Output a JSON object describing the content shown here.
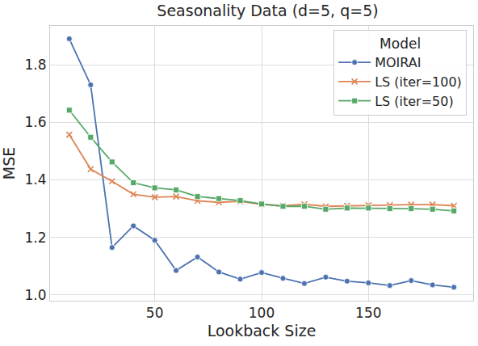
{
  "chart_data": {
    "type": "line",
    "title": "Seasonality Data (d=5, q=5)",
    "x_label": "Lookback Size",
    "y_label": "MSE",
    "legend_title": "Model",
    "legend": "upper right",
    "grid": true,
    "x": [
      10,
      20,
      30,
      40,
      50,
      60,
      70,
      80,
      90,
      100,
      110,
      120,
      130,
      140,
      150,
      160,
      170,
      180,
      190
    ],
    "series": [
      {
        "name": "MOIRAI",
        "color": "#4c72b0",
        "marker": "circle",
        "line_style": "solid",
        "values": [
          1.89,
          1.73,
          1.165,
          1.24,
          1.19,
          1.085,
          1.132,
          1.08,
          1.055,
          1.078,
          1.058,
          1.04,
          1.062,
          1.048,
          1.042,
          1.033,
          1.05,
          1.035,
          1.027
        ]
      },
      {
        "name": "LS (iter=100)",
        "color": "#dd8452",
        "marker": "x",
        "line_style": "solid",
        "values": [
          1.557,
          1.437,
          1.395,
          1.35,
          1.34,
          1.342,
          1.327,
          1.322,
          1.325,
          1.315,
          1.31,
          1.315,
          1.308,
          1.31,
          1.312,
          1.312,
          1.314,
          1.314,
          1.31
        ]
      },
      {
        "name": "LS (iter=50)",
        "color": "#55a868",
        "marker": "square",
        "line_style": "solid",
        "values": [
          1.642,
          1.548,
          1.462,
          1.39,
          1.372,
          1.365,
          1.342,
          1.335,
          1.328,
          1.316,
          1.308,
          1.308,
          1.298,
          1.302,
          1.302,
          1.3,
          1.3,
          1.298,
          1.292
        ]
      }
    ],
    "xlim": [
      1,
      199
    ],
    "xticks": [
      50,
      100,
      150
    ],
    "ylim": [
      0.98,
      1.935
    ],
    "yticks": [
      {
        "value": 1.0,
        "label": "1.0"
      },
      {
        "value": 1.2,
        "label": "1.2"
      },
      {
        "value": 1.4,
        "label": "1.4"
      },
      {
        "value": 1.6,
        "label": "1.6"
      },
      {
        "value": 1.8,
        "label": "1.8"
      }
    ]
  }
}
